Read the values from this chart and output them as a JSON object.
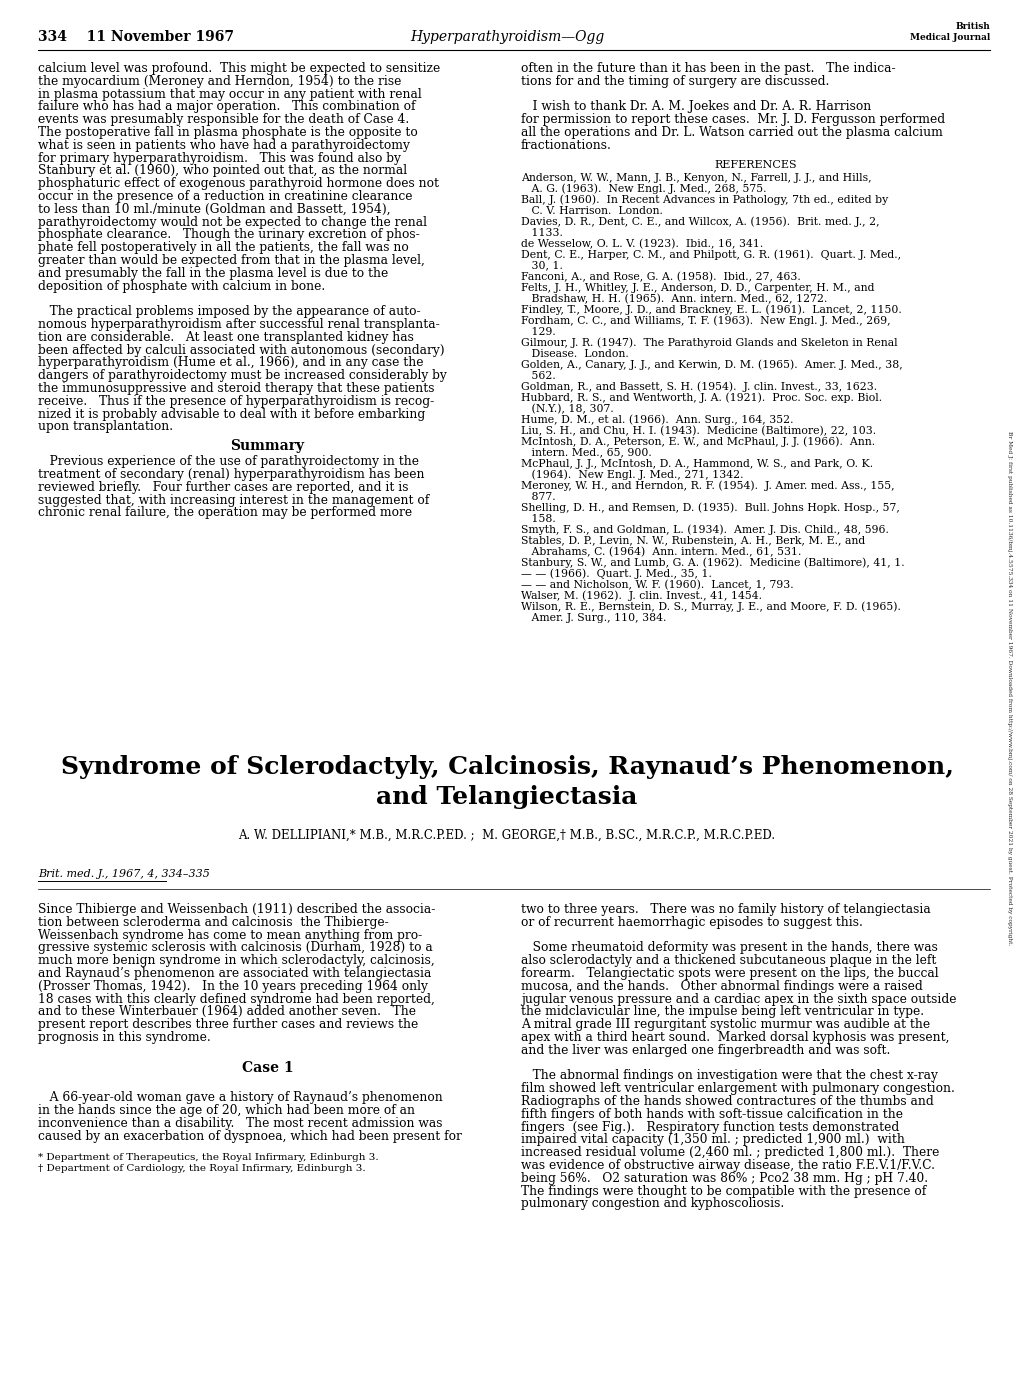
{
  "background_color": "#ffffff",
  "page_width": 10.2,
  "page_height": 13.76,
  "header": {
    "left": "334    11 November 1967",
    "center": "Hyperparathyroidism—Ogg",
    "right_line1": "British",
    "right_line2": "Medical Journal"
  },
  "sidebar_text": "Br Med J: first published as 10.1136/bmj.4.5575.334 on 11 November 1967. Downloaded from http://www.bmj.com/ on 28 September 2021 by guest. Protected by copyright.",
  "col1_top_text": [
    "calcium level was profound.  This might be expected to sensitize",
    "the myocardium (Meroney and Herndon, 1954) to the rise",
    "in plasma potassium that may occur in any patient with renal",
    "failure who has had a major operation.   This combination of",
    "events was presumably responsible for the death of Case 4.",
    "The postoperative fall in plasma phosphate is the opposite to",
    "what is seen in patients who have had a parathyroidectomy",
    "for primary hyperparathyroidism.   This was found also by",
    "Stanbury et al. (1960), who pointed out that, as the normal",
    "phosphaturic effect of exogenous parathyroid hormone does not",
    "occur in the presence of a reduction in creatinine clearance",
    "to less than 10 ml./minute (Goldman and Bassett, 1954),",
    "parathyroidectomy would not be expected to change the renal",
    "phosphate clearance.   Though the urinary excretion of phos-",
    "phate fell postoperatively in all the patients, the fall was no",
    "greater than would be expected from that in the plasma level,",
    "and presumably the fall in the plasma level is due to the",
    "deposition of phosphate with calcium in bone.",
    "",
    "   The practical problems imposed by the appearance of auto-",
    "nomous hyperparathyroidism after successful renal transplanta-",
    "tion are considerable.   At least one transplanted kidney has",
    "been affected by calculi associated with autonomous (secondary)",
    "hyperparathyroidism (Hume et al., 1966), and in any case the",
    "dangers of parathyroidectomy must be increased considerably by",
    "the immunosuppressive and steroid therapy that these patients",
    "receive.   Thus if the presence of hyperparathyroidism is recog-",
    "nized it is probably advisable to deal with it before embarking",
    "upon transplantation."
  ],
  "summary_title": "Summary",
  "summary_text": [
    "   Previous experience of the use of parathyroidectomy in the",
    "treatment of secondary (renal) hyperparathyroidism has been",
    "reviewed briefly.   Four further cases are reported, and it is",
    "suggested that, with increasing interest in the management of",
    "chronic renal failure, the operation may be performed more"
  ],
  "col2_top_text": [
    "often in the future than it has been in the past.   The indica-",
    "tions for and the timing of surgery are discussed.",
    "",
    "   I wish to thank Dr. A. M. Joekes and Dr. A. R. Harrison",
    "for permission to report these cases.  Mr. J. D. Fergusson performed",
    "all the operations and Dr. L. Watson carried out the plasma calcium",
    "fractionations."
  ],
  "references_title": "References",
  "references": [
    "Anderson, W. W., Mann, J. B., Kenyon, N., Farrell, J. J., and Hills,",
    "   A. G. (1963).  New Engl. J. Med., 268, 575.",
    "Ball, J. (1960).  In Recent Advances in Pathology, 7th ed., edited by",
    "   C. V. Harrison.  London.",
    "Davies, D. R., Dent, C. E., and Willcox, A. (1956).  Brit. med. J., 2,",
    "   1133.",
    "de Wesselow, O. L. V. (1923).  Ibid., 16, 341.",
    "Dent, C. E., Harper, C. M., and Philpott, G. R. (1961).  Quart. J. Med.,",
    "   30, 1.",
    "Fanconi, A., and Rose, G. A. (1958).  Ibid., 27, 463.",
    "Felts, J. H., Whitley, J. E., Anderson, D. D., Carpenter, H. M., and",
    "   Bradshaw, H. H. (1965).  Ann. intern. Med., 62, 1272.",
    "Findley, T., Moore, J. D., and Brackney, E. L. (1961).  Lancet, 2, 1150.",
    "Fordham, C. C., and Williams, T. F. (1963).  New Engl. J. Med., 269,",
    "   129.",
    "Gilmour, J. R. (1947).  The Parathyroid Glands and Skeleton in Renal",
    "   Disease.  London.",
    "Golden, A., Canary, J. J., and Kerwin, D. M. (1965).  Amer. J. Med., 38,",
    "   562.",
    "Goldman, R., and Bassett, S. H. (1954).  J. clin. Invest., 33, 1623.",
    "Hubbard, R. S., and Wentworth, J. A. (1921).  Proc. Soc. exp. Biol.",
    "   (N.Y.), 18, 307.",
    "Hume, D. M., et al. (1966).  Ann. Surg., 164, 352.",
    "Liu, S. H., and Chu, H. I. (1943).  Medicine (Baltimore), 22, 103.",
    "McIntosh, D. A., Peterson, E. W., and McPhaul, J. J. (1966).  Ann.",
    "   intern. Med., 65, 900.",
    "McPhaul, J. J., McIntosh, D. A., Hammond, W. S., and Park, O. K.",
    "   (1964).  New Engl. J. Med., 271, 1342.",
    "Meroney, W. H., and Herndon, R. F. (1954).  J. Amer. med. Ass., 155,",
    "   877.",
    "Shelling, D. H., and Remsen, D. (1935).  Bull. Johns Hopk. Hosp., 57,",
    "   158.",
    "Smyth, F. S., and Goldman, L. (1934).  Amer. J. Dis. Child., 48, 596.",
    "Stables, D. P., Levin, N. W., Rubenstein, A. H., Berk, M. E., and",
    "   Abrahams, C. (1964)  Ann. intern. Med., 61, 531.",
    "Stanbury, S. W., and Lumb, G. A. (1962).  Medicine (Baltimore), 41, 1.",
    "— — (1966).  Quart. J. Med., 35, 1.",
    "— — and Nicholson, W. F. (1960).  Lancet, 1, 793.",
    "Walser, M. (1962).  J. clin. Invest., 41, 1454.",
    "Wilson, R. E., Bernstein, D. S., Murray, J. E., and Moore, F. D. (1965).",
    "   Amer. J. Surg., 110, 384."
  ],
  "big_title_line1": "Syndrome of Sclerodactyly, Calcinosis, Raynaud’s Phenomenon,",
  "big_title_line2": "and Telangiectasia",
  "authors": "A. W. DELLIPIANI,* M.B., M.R.C.P.ED. ;  M. GEORGE,† M.B., B.SC., M.R.C.P., M.R.C.P.ED.",
  "journal_ref": "Brit. med. J., 1967, 4, 334–335",
  "new_col1_text": [
    "Since Thibierge and Weissenbach (1911) described the associa-",
    "tion between scleroderma and calcinosis  the Thibierge-",
    "Weissenbach syndrome has come to mean anything from pro-",
    "gressive systemic sclerosis with calcinosis (Durham, 1928) to a",
    "much more benign syndrome in which sclerodactyly, calcinosis,",
    "and Raynaud’s phenomenon are associated with telangiectasia",
    "(Prosser Thomas, 1942).   In the 10 years preceding 1964 only",
    "18 cases with this clearly defined syndrome had been reported,",
    "and to these Winterbauer (1964) added another seven.   The",
    "present report describes three further cases and reviews the",
    "prognosis in this syndrome.",
    "",
    "Case 1",
    "",
    "   A 66-year-old woman gave a history of Raynaud’s phenomenon",
    "in the hands since the age of 20, which had been more of an",
    "inconvenience than a disability.   The most recent admission was",
    "caused by an exacerbation of dyspnoea, which had been present for"
  ],
  "new_col2_text": [
    "two to three years.   There was no family history of telangiectasia",
    "or of recurrent haemorrhagic episodes to suggest this.",
    "",
    "   Some rheumatoid deformity was present in the hands, there was",
    "also sclerodactyly and a thickened subcutaneous plaque in the left",
    "forearm.   Telangiectatic spots were present on the lips, the buccal",
    "mucosa, and the hands.   Other abnormal findings were a raised",
    "jugular venous pressure and a cardiac apex in the sixth space outside",
    "the midclavicular line, the impulse being left ventricular in type.",
    "A mitral grade III regurgitant systolic murmur was audible at the",
    "apex with a third heart sound.  Marked dorsal kyphosis was present,",
    "and the liver was enlarged one fingerbreadth and was soft.",
    "",
    "   The abnormal findings on investigation were that the chest x-ray",
    "film showed left ventricular enlargement with pulmonary congestion.",
    "Radiographs of the hands showed contractures of the thumbs and",
    "fifth fingers of both hands with soft-tissue calcification in the",
    "fingers  (see Fig.).   Respiratory function tests demonstrated",
    "impaired vital capacity (1,350 ml. ; predicted 1,900 ml.)  with",
    "increased residual volume (2,460 ml. ; predicted 1,800 ml.).  There",
    "was evidence of obstructive airway disease, the ratio F.E.V.1/F.V.C.",
    "being 56%.   O2 saturation was 86% ; Pco2 38 mm. Hg ; pH 7.40.",
    "The findings were thought to be compatible with the presence of",
    "pulmonary congestion and kyphoscoliosis."
  ],
  "footnotes": [
    "* Department of Therapeutics, the Royal Infirmary, Edinburgh 3.",
    "† Department of Cardiology, the Royal Infirmary, Edinburgh 3."
  ]
}
